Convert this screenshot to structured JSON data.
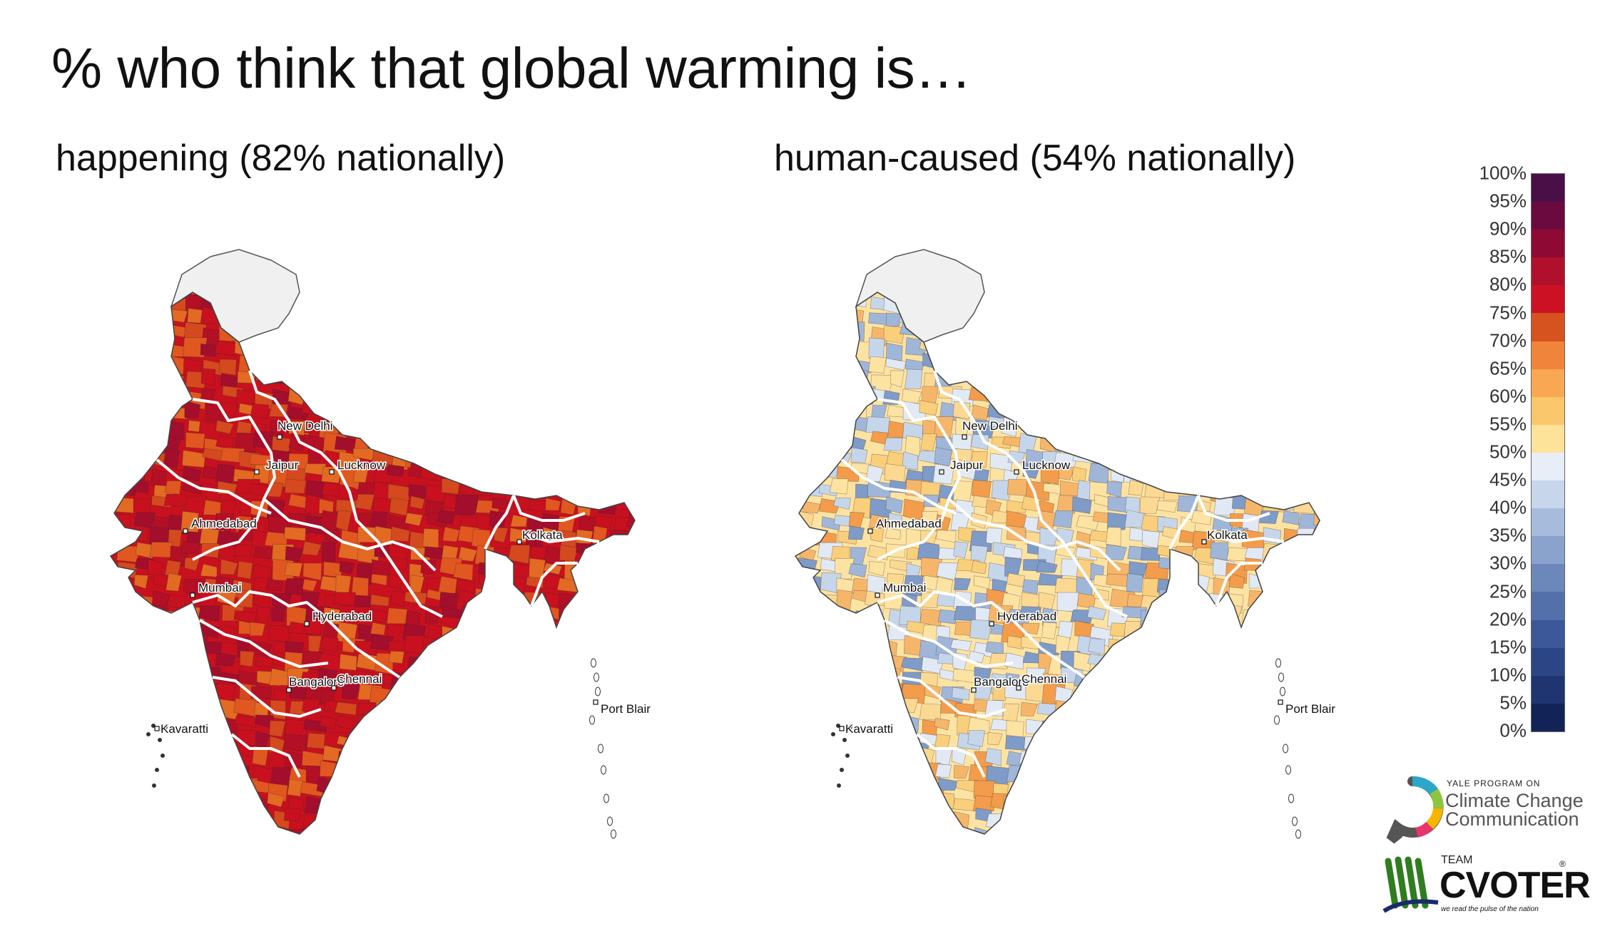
{
  "title": "% who think that global warming is…",
  "maps": [
    {
      "subtitle": "happening (82% nationally)",
      "cities": [
        "New Delhi",
        "Jaipur",
        "Lucknow",
        "Ahmedabad",
        "Kolkata",
        "Mumbai",
        "Hyderabad",
        "Bangalore",
        "Chennai",
        "Kavaratti",
        "Port Blair"
      ],
      "palette": [
        "#c8101e",
        "#d4491e",
        "#b30f25",
        "#e26a22",
        "#a20e2c",
        "#c8101e",
        "#e0571f"
      ],
      "states_fill": "#f0f0f0"
    },
    {
      "subtitle": "human-caused (54% nationally)",
      "cities": [
        "New Delhi",
        "Jaipur",
        "Lucknow",
        "Ahmedabad",
        "Kolkata",
        "Mumbai",
        "Hyderabad",
        "Bangalore",
        "Chennai",
        "Kavaratti",
        "Port Blair"
      ],
      "palette": [
        "#fde3a2",
        "#c6d6ea",
        "#f9cf7c",
        "#e1e9f4",
        "#f6b66a",
        "#9fb6d8",
        "#fbd993",
        "#7f9bc7",
        "#f39c4b"
      ],
      "states_fill": "#f0f0f0"
    }
  ],
  "legend": {
    "ticks": [
      "100%",
      "95%",
      "90%",
      "85%",
      "80%",
      "75%",
      "70%",
      "65%",
      "60%",
      "55%",
      "50%",
      "45%",
      "40%",
      "35%",
      "30%",
      "25%",
      "20%",
      "15%",
      "10%",
      "5%",
      "0%"
    ],
    "colors": [
      "#4a0f47",
      "#6b0a3f",
      "#8e0a34",
      "#b0102b",
      "#cc1124",
      "#d6521f",
      "#f0843a",
      "#f8a853",
      "#fbc76d",
      "#fde299",
      "#e8eef7",
      "#c7d6ea",
      "#a7bcdc",
      "#8aa3cd",
      "#6c87ba",
      "#5470aa",
      "#3c5898",
      "#2c4685",
      "#1f3572",
      "#122358"
    ]
  },
  "logos": {
    "yale_small": "YALE PROGRAM ON",
    "yale_line1": "Climate Change",
    "yale_line2": "Communication",
    "cvoter_team": "TEAM",
    "cvoter_name": "CVOTER",
    "cvoter_reg": "®",
    "cvoter_tagline": "we read the pulse of the nation"
  }
}
